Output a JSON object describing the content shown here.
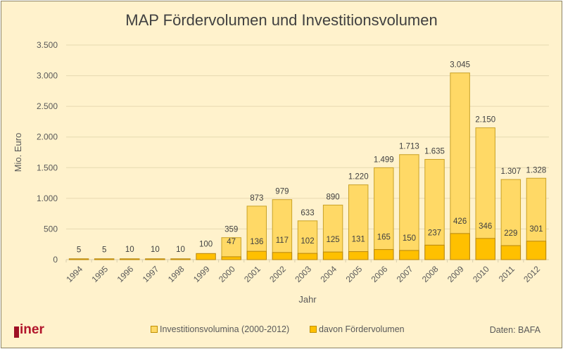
{
  "chart_data": {
    "type": "bar",
    "stacked": "overlay",
    "title": "MAP Fördervolumen und Investitionsvolumen",
    "xlabel": "Jahr",
    "ylabel": "Mio. Euro",
    "ylim": [
      0,
      3500
    ],
    "yticks": [
      0,
      500,
      1000,
      1500,
      2000,
      2500,
      3000,
      3500
    ],
    "ytick_labels": [
      "0",
      "500",
      "1.000",
      "1.500",
      "2.000",
      "2.500",
      "3.000",
      "3.500"
    ],
    "grid": true,
    "legend_position": "bottom",
    "categories": [
      "1994",
      "1995",
      "1996",
      "1997",
      "1998",
      "1999",
      "2000",
      "2001",
      "2002",
      "2003",
      "2004",
      "2005",
      "2006",
      "2007",
      "2008",
      "2009",
      "2010",
      "2011",
      "2012"
    ],
    "series": [
      {
        "name": "Investitionsvolumina (2000-2012)",
        "color": "#ffd966",
        "values": [
          null,
          null,
          null,
          null,
          null,
          null,
          359,
          873,
          979,
          633,
          890,
          1220,
          1499,
          1713,
          1635,
          3045,
          2150,
          1307,
          1328
        ],
        "labels": [
          "",
          "",
          "",
          "",
          "",
          "",
          "359",
          "873",
          "979",
          "633",
          "890",
          "1.220",
          "1.499",
          "1.713",
          "1.635",
          "3.045",
          "2.150",
          "1.307",
          "1.328"
        ]
      },
      {
        "name": "davon Fördervolumen",
        "color": "#ffc000",
        "values": [
          5,
          5,
          10,
          10,
          10,
          100,
          47,
          136,
          117,
          102,
          125,
          131,
          165,
          150,
          237,
          426,
          346,
          229,
          301
        ],
        "labels": [
          "5",
          "5",
          "10",
          "10",
          "10",
          "100",
          "47",
          "136",
          "117",
          "102",
          "125",
          "131",
          "165",
          "150",
          "237",
          "426",
          "346",
          "229",
          "301"
        ]
      }
    ]
  },
  "legend": {
    "items": [
      {
        "label": "Investitionsvolumina (2000-2012)",
        "color": "#ffd966"
      },
      {
        "label": "davon Fördervolumen",
        "color": "#ffc000"
      }
    ]
  },
  "logo": {
    "text": "iner"
  },
  "source": "Daten: BAFA"
}
